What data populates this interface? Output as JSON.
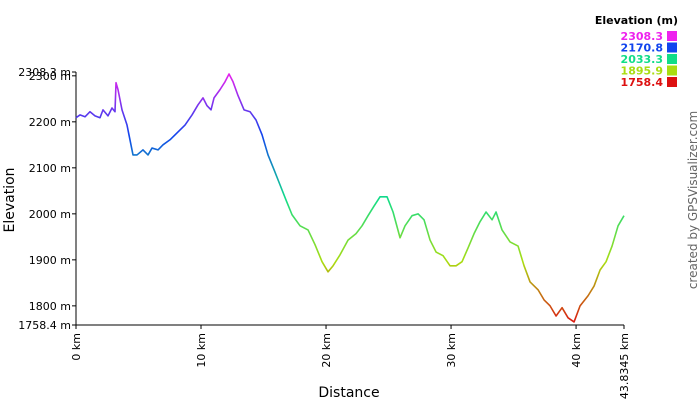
{
  "chart_data": {
    "type": "line",
    "x_label": "Distance",
    "y_label": "Elevation",
    "credit": "created by GPSVisualizer.com",
    "legend_title": "Elevation (m)",
    "colorscale": [
      {
        "value": 2308.3,
        "color": "#ee22ee"
      },
      {
        "value": 2170.8,
        "color": "#1144ee"
      },
      {
        "value": 2033.3,
        "color": "#11dd88"
      },
      {
        "value": 1895.9,
        "color": "#aadd11"
      },
      {
        "value": 1758.4,
        "color": "#dd1111"
      }
    ],
    "xlim": [
      0,
      43.8345
    ],
    "ylim": [
      1758.4,
      2308.3
    ],
    "xticks": [
      {
        "value": 0,
        "label": "0 km"
      },
      {
        "value": 10,
        "label": "10 km"
      },
      {
        "value": 20,
        "label": "20 km"
      },
      {
        "value": 30,
        "label": "30 km"
      },
      {
        "value": 40,
        "label": "40 km"
      },
      {
        "value": 43.8345,
        "label": "43.8345 km"
      }
    ],
    "yticks": [
      {
        "value": 1758.4,
        "label": "1758.4 m"
      },
      {
        "value": 1800,
        "label": "1800 m"
      },
      {
        "value": 1900,
        "label": "1900 m"
      },
      {
        "value": 2000,
        "label": "2000 m"
      },
      {
        "value": 2100,
        "label": "2100 m"
      },
      {
        "value": 2200,
        "label": "2200 m"
      },
      {
        "value": 2300,
        "label": "2300 m"
      },
      {
        "value": 2308.3,
        "label": "2308.3 m"
      }
    ],
    "x": [
      0,
      0.32,
      0.72,
      1.12,
      1.52,
      1.92,
      2.16,
      2.56,
      2.88,
      3.12,
      3.2,
      3.36,
      3.68,
      4.08,
      4.56,
      4.88,
      5.36,
      5.76,
      6.08,
      6.56,
      6.96,
      7.52,
      8.16,
      8.72,
      9.28,
      9.76,
      10.16,
      10.48,
      10.8,
      11.04,
      11.52,
      11.92,
      12.24,
      12.56,
      12.96,
      13.44,
      13.92,
      14.4,
      14.88,
      15.36,
      15.84,
      16.32,
      16.8,
      17.28,
      17.92,
      18.56,
      19.12,
      19.68,
      20.16,
      20.56,
      21.12,
      21.76,
      22.4,
      22.88,
      23.36,
      23.84,
      24.32,
      24.88,
      25.36,
      25.92,
      26.32,
      26.88,
      27.36,
      27.84,
      28.32,
      28.8,
      29.36,
      29.92,
      30.4,
      30.88,
      31.36,
      31.84,
      32.32,
      32.8,
      33.28,
      33.6,
      34.08,
      34.72,
      35.36,
      35.84,
      36.32,
      36.96,
      37.44,
      37.92,
      38.4,
      38.88,
      39.36,
      39.84,
      40.32,
      40.96,
      41.44,
      41.92,
      42.4,
      42.88,
      43.36,
      43.8345
    ],
    "values": [
      2209,
      2215,
      2211,
      2222,
      2213,
      2209,
      2226,
      2213,
      2230,
      2222,
      2285,
      2270,
      2226,
      2193,
      2128,
      2128,
      2139,
      2128,
      2143,
      2139,
      2150,
      2161,
      2178,
      2193,
      2215,
      2237,
      2252,
      2235,
      2226,
      2252,
      2270,
      2287,
      2304,
      2287,
      2257,
      2226,
      2222,
      2204,
      2172,
      2128,
      2096,
      2063,
      2030,
      1998,
      1974,
      1965,
      1933,
      1896,
      1874,
      1887,
      1911,
      1943,
      1957,
      1974,
      1996,
      2017,
      2037,
      2037,
      2004,
      1948,
      1974,
      1996,
      2000,
      1987,
      1943,
      1917,
      1909,
      1887,
      1887,
      1896,
      1926,
      1957,
      1983,
      2004,
      1987,
      2004,
      1965,
      1939,
      1930,
      1887,
      1852,
      1835,
      1813,
      1800,
      1778,
      1796,
      1774,
      1765,
      1800,
      1822,
      1843,
      1878,
      1896,
      1930,
      1974,
      1996
    ]
  }
}
